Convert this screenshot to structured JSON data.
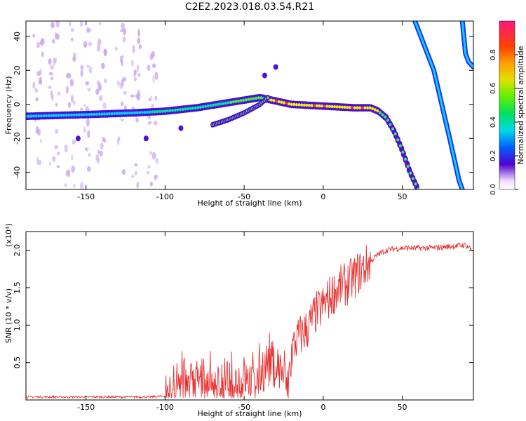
{
  "title": "C2E2.2023.018.03.54.R21",
  "chart_data": [
    {
      "type": "heatmap",
      "xlabel": "Height of straight line (km)",
      "ylabel": "Frequency (Hz)",
      "xlim": [
        -188,
        95
      ],
      "ylim": [
        -50,
        49
      ],
      "xticks": [
        -150,
        -100,
        -50,
        0,
        50
      ],
      "yticks": [
        -40,
        -20,
        0,
        20,
        40
      ],
      "colorbar": {
        "label": "Normalized spectral amplitude",
        "range": [
          0,
          1
        ],
        "ticks": [
          "0.0",
          "0.2",
          "0.4",
          "0.6",
          "0.8"
        ]
      },
      "features": [
        {
          "name": "carrier",
          "x": [
            -188,
            -150,
            -120,
            -100,
            -80,
            -60,
            -40,
            -30,
            -20,
            0,
            20,
            30,
            35,
            40,
            45,
            50,
            55,
            60
          ],
          "y": [
            -7,
            -6,
            -5,
            -4,
            -2,
            1,
            4,
            2,
            0,
            -1,
            -2,
            -2,
            -4,
            -8,
            -16,
            -27,
            -40,
            -50
          ]
        },
        {
          "name": "secondary",
          "x": [
            -70,
            -60,
            -50,
            -40,
            -35
          ],
          "y": [
            -12,
            -9,
            -5,
            0,
            4
          ]
        },
        {
          "name": "streak-1",
          "x": [
            58,
            70,
            75,
            80,
            86,
            88
          ],
          "y": [
            49,
            20,
            0,
            -20,
            -45,
            -50
          ]
        },
        {
          "name": "streak-2",
          "x": [
            88,
            90,
            92,
            95
          ],
          "y": [
            49,
            30,
            25,
            22
          ]
        }
      ]
    },
    {
      "type": "line",
      "xlabel": "Height of straight line (km)",
      "ylabel": "SNR (10 * v/v)",
      "yunit": "(x10⁴)",
      "xlim": [
        -188,
        95
      ],
      "ylim": [
        0,
        2.25
      ],
      "xticks": [
        -150,
        -100,
        -50,
        0,
        50
      ],
      "yticks": [
        0.5,
        1.0,
        1.5,
        2.0
      ],
      "series": [
        {
          "color": "#e83030",
          "x": [
            -188,
            -170,
            -150,
            -130,
            -110,
            -100,
            -95,
            -90,
            -85,
            -80,
            -75,
            -70,
            -65,
            -60,
            -55,
            -50,
            -45,
            -40,
            -35,
            -30,
            -25,
            -22,
            -20,
            -18,
            -15,
            -10,
            -5,
            0,
            5,
            10,
            15,
            20,
            25,
            30,
            35,
            40,
            45,
            50,
            60,
            70,
            80,
            90,
            95
          ],
          "y": [
            0.04,
            0.04,
            0.04,
            0.04,
            0.04,
            0.05,
            0.15,
            0.25,
            0.28,
            0.25,
            0.22,
            0.2,
            0.22,
            0.18,
            0.25,
            0.28,
            0.22,
            0.35,
            0.55,
            0.45,
            0.35,
            0.1,
            0.65,
            0.75,
            0.85,
            0.95,
            1.15,
            1.25,
            1.4,
            1.5,
            1.55,
            1.65,
            1.75,
            1.85,
            1.95,
            2.0,
            2.02,
            2.03,
            2.03,
            2.03,
            2.05,
            2.07,
            2.0
          ]
        }
      ]
    }
  ]
}
